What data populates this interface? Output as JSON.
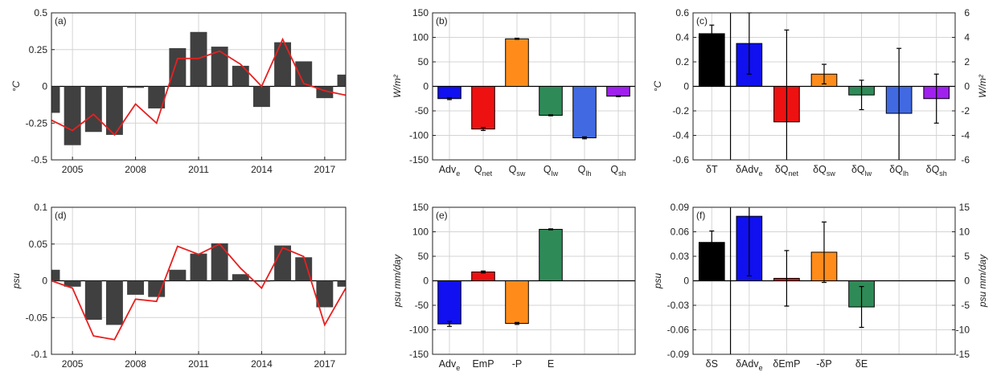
{
  "colors": {
    "dark_bar": "#404040",
    "red_line": "#e8201f",
    "grid": "#d4d4d4",
    "axis": "#222222"
  },
  "chart_data": [
    {
      "id": "a",
      "type": "bar",
      "panel_label": "(a)",
      "ylabel": "°C",
      "ylim": [
        -0.5,
        0.5
      ],
      "yticks": [
        -0.5,
        -0.25,
        0,
        0.25,
        0.5
      ],
      "ytick_labels": [
        "-0.5",
        "-0.25",
        "0",
        "0.25",
        "0.5"
      ],
      "xlim": [
        2004,
        2018
      ],
      "xticks": [
        2005,
        2008,
        2011,
        2014,
        2017
      ],
      "xtick_labels": [
        "2005",
        "2008",
        "2011",
        "2014",
        "2017"
      ],
      "grid": true,
      "x": [
        2004,
        2005,
        2006,
        2007,
        2008,
        2009,
        2010,
        2011,
        2012,
        2013,
        2014,
        2015,
        2016,
        2017,
        2018
      ],
      "bar_values": [
        -0.18,
        -0.4,
        -0.31,
        -0.33,
        -0.01,
        -0.15,
        0.26,
        0.37,
        0.27,
        0.14,
        -0.14,
        0.3,
        0.17,
        -0.08,
        0.08
      ],
      "line_values": [
        -0.23,
        -0.3,
        -0.19,
        -0.33,
        -0.12,
        -0.25,
        0.19,
        0.19,
        0.24,
        0.15,
        -0.0,
        0.32,
        0.02,
        -0.03,
        -0.06
      ]
    },
    {
      "id": "b",
      "type": "bar",
      "panel_label": "(b)",
      "ylabel": "W/m²",
      "ylim": [
        -150,
        150
      ],
      "yticks": [
        -150,
        -100,
        -50,
        0,
        50,
        100,
        150
      ],
      "ytick_labels": [
        "-150",
        "-100",
        "-50",
        "0",
        "50",
        "100",
        "150"
      ],
      "grid": true,
      "categories": [
        {
          "base": "Adv",
          "sub": "e"
        },
        {
          "base": "Q",
          "sub": "net"
        },
        {
          "base": "Q",
          "sub": "sw"
        },
        {
          "base": "Q",
          "sub": "lw"
        },
        {
          "base": "Q",
          "sub": "lh"
        },
        {
          "base": "Q",
          "sub": "sh"
        }
      ],
      "values": [
        -25,
        -87,
        97,
        -59,
        -105,
        -20
      ],
      "errors": [
        2,
        3,
        1,
        1,
        2,
        1
      ],
      "bar_colors": [
        "#1010f0",
        "#ee1111",
        "#ff8c1a",
        "#2e8b57",
        "#4169e1",
        "#a020f0"
      ]
    },
    {
      "id": "c",
      "type": "bar",
      "panel_label": "(c)",
      "ylabel": "°C",
      "ylabel_right": "W/m²",
      "ylim": [
        -0.6,
        0.6
      ],
      "yticks": [
        -0.6,
        -0.4,
        -0.2,
        0,
        0.2,
        0.4,
        0.6
      ],
      "ytick_labels": [
        "-0.6",
        "-0.4",
        "-0.2",
        "0",
        "0.2",
        "0.4",
        "0.6"
      ],
      "ylim_right": [
        -6,
        6
      ],
      "yticks_right": [
        -6,
        -4,
        -2,
        0,
        2,
        4,
        6
      ],
      "ytick_labels_right": [
        "-6",
        "-4",
        "-2",
        "0",
        "2",
        "4",
        "6"
      ],
      "grid": true,
      "categories": [
        {
          "base": "δT",
          "sub": ""
        },
        {
          "base": "δAdv",
          "sub": "e"
        },
        {
          "base": "δQ",
          "sub": "net"
        },
        {
          "base": "δQ",
          "sub": "sw"
        },
        {
          "base": "δQ",
          "sub": "lw"
        },
        {
          "base": "δQ",
          "sub": "lh"
        },
        {
          "base": "δQ",
          "sub": "sh"
        }
      ],
      "values": [
        0.43,
        0.35,
        -0.29,
        0.1,
        -0.07,
        -0.22,
        -0.1
      ],
      "errors": [
        0.07,
        0.25,
        0.75,
        0.08,
        0.12,
        0.53,
        0.2
      ],
      "bar_colors": [
        "#000000",
        "#1010f0",
        "#ee1111",
        "#ff8c1a",
        "#2e8b57",
        "#4169e1",
        "#a020f0"
      ]
    },
    {
      "id": "d",
      "type": "bar",
      "panel_label": "(d)",
      "ylabel": "psu",
      "ylim": [
        -0.1,
        0.1
      ],
      "yticks": [
        -0.1,
        -0.05,
        0,
        0.05,
        0.1
      ],
      "ytick_labels": [
        "-0.1",
        "-0.05",
        "0",
        "0.05",
        "0.1"
      ],
      "xlim": [
        2004,
        2018
      ],
      "xticks": [
        2005,
        2008,
        2011,
        2014,
        2017
      ],
      "xtick_labels": [
        "2005",
        "2008",
        "2011",
        "2014",
        "2017"
      ],
      "grid": true,
      "x": [
        2004,
        2005,
        2006,
        2007,
        2008,
        2009,
        2010,
        2011,
        2012,
        2013,
        2014,
        2015,
        2016,
        2017,
        2018
      ],
      "bar_values": [
        0.015,
        -0.008,
        -0.053,
        -0.06,
        -0.019,
        -0.022,
        0.015,
        0.037,
        0.051,
        0.009,
        0.0,
        0.048,
        0.032,
        -0.036,
        -0.008
      ],
      "line_values": [
        0.0,
        -0.01,
        -0.075,
        -0.08,
        -0.025,
        -0.028,
        0.047,
        0.036,
        0.05,
        0.017,
        -0.01,
        0.045,
        0.033,
        -0.06,
        -0.01
      ]
    },
    {
      "id": "e",
      "type": "bar",
      "panel_label": "(e)",
      "ylabel": "psu mm/day",
      "ylim": [
        -150,
        150
      ],
      "yticks": [
        -150,
        -100,
        -50,
        0,
        50,
        100,
        150
      ],
      "ytick_labels": [
        "-150",
        "-100",
        "-50",
        "0",
        "50",
        "100",
        "150"
      ],
      "grid": true,
      "n_slots": 6,
      "categories": [
        {
          "base": "Adv",
          "sub": "e"
        },
        {
          "base": "EmP",
          "sub": ""
        },
        {
          "base": "-P",
          "sub": ""
        },
        {
          "base": "E",
          "sub": ""
        }
      ],
      "values": [
        -88,
        18,
        -87,
        105
      ],
      "errors": [
        5,
        2,
        2,
        1
      ],
      "bar_colors": [
        "#1010f0",
        "#ee1111",
        "#ff8c1a",
        "#2e8b57"
      ]
    },
    {
      "id": "f",
      "type": "bar",
      "panel_label": "(f)",
      "ylabel": "psu",
      "ylabel_right": "psu mm/day",
      "ylim": [
        -0.09,
        0.09
      ],
      "yticks": [
        -0.09,
        -0.06,
        -0.03,
        0,
        0.03,
        0.06,
        0.09
      ],
      "ytick_labels": [
        "-0.09",
        "-0.06",
        "-0.03",
        "0",
        "0.03",
        "0.06",
        "0.09"
      ],
      "ylim_right": [
        -15,
        15
      ],
      "yticks_right": [
        -15,
        -10,
        -5,
        0,
        5,
        10,
        15
      ],
      "ytick_labels_right": [
        "-15",
        "-10",
        "-5",
        "0",
        "5",
        "10",
        "15"
      ],
      "grid": true,
      "n_slots": 7,
      "categories": [
        {
          "base": "δS",
          "sub": ""
        },
        {
          "base": "δAdv",
          "sub": "e"
        },
        {
          "base": "δEmP",
          "sub": ""
        },
        {
          "base": "-δP",
          "sub": ""
        },
        {
          "base": "δE",
          "sub": ""
        }
      ],
      "values": [
        0.047,
        0.079,
        0.003,
        0.035,
        -0.032
      ],
      "errors": [
        0.014,
        0.073,
        0.034,
        0.037,
        0.025
      ],
      "bar_colors": [
        "#000000",
        "#1010f0",
        "#ee1111",
        "#ff8c1a",
        "#2e8b57"
      ]
    }
  ]
}
